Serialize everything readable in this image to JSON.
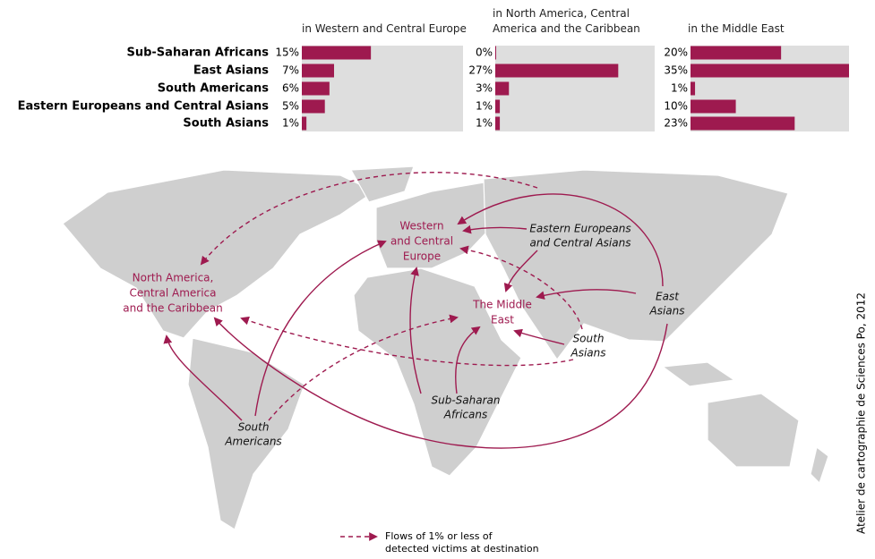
{
  "chart_data": [
    {
      "type": "bar",
      "title": "in Western and Central Europe",
      "categories": [
        "Sub-Saharan Africans",
        "East Asians",
        "South Americans",
        "Eastern Europeans and Central Asians",
        "South Asians"
      ],
      "values": [
        15,
        7,
        6,
        5,
        1
      ],
      "value_labels": [
        "15%",
        "7%",
        "6%",
        "5%",
        "1%"
      ],
      "xlim": [
        0,
        35
      ],
      "color": "#9e1a4f"
    },
    {
      "type": "bar",
      "title": "in North America, Central America and the Caribbean",
      "values": [
        0,
        27,
        3,
        1,
        1
      ],
      "value_labels": [
        "0%",
        "27%",
        "3%",
        "1%",
        "1%"
      ],
      "xlim": [
        0,
        35
      ],
      "color": "#9e1a4f"
    },
    {
      "type": "bar",
      "title": "in the Middle East",
      "values": [
        20,
        35,
        1,
        10,
        23
      ],
      "value_labels": [
        "20%",
        "35%",
        "1%",
        "10%",
        "23%"
      ],
      "xlim": [
        0,
        35
      ],
      "color": "#9e1a4f"
    }
  ],
  "map": {
    "destinations": [
      {
        "lines": [
          "Western",
          "and Central",
          "Europe"
        ]
      },
      {
        "lines": [
          "North America,",
          "Central America",
          "and the Caribbean"
        ]
      },
      {
        "lines": [
          "The Middle",
          "East"
        ]
      }
    ],
    "origins": [
      {
        "lines": [
          "Eastern Europeans",
          "and Central Asians"
        ]
      },
      {
        "lines": [
          "East",
          "Asians"
        ]
      },
      {
        "lines": [
          "South",
          "Asians"
        ]
      },
      {
        "lines": [
          "Sub-Saharan",
          "Africans"
        ]
      },
      {
        "lines": [
          "South",
          "Americans"
        ]
      }
    ],
    "legend": [
      "Flows of 1% or less of",
      "detected victims at destination"
    ],
    "credit": "Atelier de cartographie de Sciences Po, 2012"
  }
}
